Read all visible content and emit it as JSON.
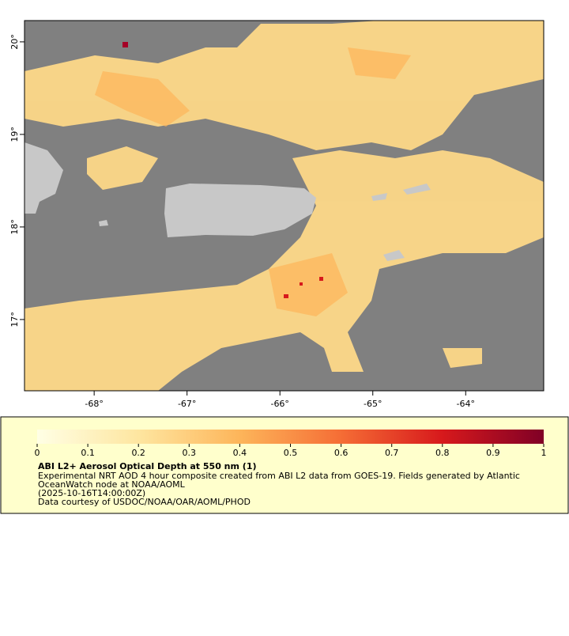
{
  "map": {
    "xlim": [
      -68.75,
      -63.16
    ],
    "ylim": [
      16.23,
      20.23
    ],
    "xticks": [
      {
        "value": -68,
        "label": "-68°"
      },
      {
        "value": -67,
        "label": "-67°"
      },
      {
        "value": -66,
        "label": "-66°"
      },
      {
        "value": -65,
        "label": "-65°"
      },
      {
        "value": -64,
        "label": "-64°"
      }
    ],
    "yticks": [
      {
        "value": 17,
        "label": "17°"
      },
      {
        "value": 18,
        "label": "18°"
      },
      {
        "value": 19,
        "label": "19°"
      },
      {
        "value": 20,
        "label": "20°"
      }
    ]
  },
  "colorbar": {
    "lim": [
      0,
      1
    ],
    "ticks": [
      0,
      0.1,
      0.2,
      0.3,
      0.4,
      0.5,
      0.6,
      0.7,
      0.8,
      0.9,
      1
    ]
  },
  "legend": {
    "title": "ABI L2+ Aerosol Optical Depth at 550 nm (1)",
    "lines": [
      "Experimental NRT AOD 4 hour composite created from ABI L2 data from GOES-19. Fields generated by Atlantic",
      "OceanWatch node at NOAA/AOML",
      "(2025-10-16T14:00:00Z)",
      "Data courtesy of USDOC/NOAA/OAR/AOML/PHOD"
    ]
  }
}
